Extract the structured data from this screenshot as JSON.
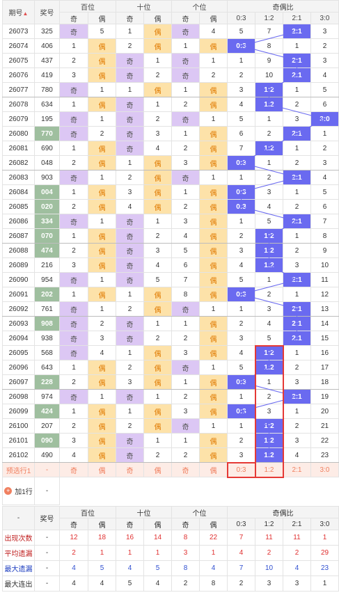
{
  "header": {
    "issue": "期号",
    "prize": "奖号",
    "groups": [
      "百位",
      "十位",
      "个位",
      "奇偶比"
    ],
    "odd": "奇",
    "even": "偶",
    "ratios": [
      "0:3",
      "1:2",
      "2:1",
      "3:0"
    ]
  },
  "rows": [
    {
      "issue": "26073",
      "prize": "325",
      "b": [
        "奇",
        "5"
      ],
      "s": [
        "1",
        "偶"
      ],
      "g": [
        "奇",
        "4"
      ],
      "r": [
        "5",
        "7",
        "2:1",
        "3"
      ],
      "sel": 2,
      "green": false
    },
    {
      "issue": "26074",
      "prize": "406",
      "b": [
        "1",
        "偶"
      ],
      "s": [
        "2",
        "偶"
      ],
      "g": [
        "1",
        "偶"
      ],
      "r": [
        "0:3",
        "8",
        "1",
        "2"
      ],
      "sel": 0,
      "green": false
    },
    {
      "issue": "26075",
      "prize": "437",
      "b": [
        "2",
        "偶"
      ],
      "s": [
        "奇",
        "1"
      ],
      "g": [
        "奇",
        "1"
      ],
      "r": [
        "1",
        "9",
        "2:1",
        "3"
      ],
      "sel": 2,
      "green": false
    },
    {
      "issue": "26076",
      "prize": "419",
      "b": [
        "3",
        "偶"
      ],
      "s": [
        "奇",
        "2"
      ],
      "g": [
        "奇",
        "2"
      ],
      "r": [
        "2",
        "10",
        "2:1",
        "4"
      ],
      "sel": 2,
      "green": false
    },
    {
      "issue": "26077",
      "prize": "780",
      "b": [
        "奇",
        "1"
      ],
      "s": [
        "1",
        "偶"
      ],
      "g": [
        "1",
        "偶"
      ],
      "r": [
        "3",
        "1:2",
        "1",
        "5"
      ],
      "sel": 1,
      "green": false
    },
    {
      "issue": "26078",
      "prize": "634",
      "b": [
        "1",
        "偶"
      ],
      "s": [
        "奇",
        "1"
      ],
      "g": [
        "2",
        "偶"
      ],
      "r": [
        "4",
        "1:2",
        "2",
        "6"
      ],
      "sel": 1,
      "green": false
    },
    {
      "issue": "26079",
      "prize": "195",
      "b": [
        "奇",
        "1"
      ],
      "s": [
        "奇",
        "2"
      ],
      "g": [
        "奇",
        "1"
      ],
      "r": [
        "5",
        "1",
        "3",
        "3:0"
      ],
      "sel": 3,
      "green": false
    },
    {
      "issue": "26080",
      "prize": "770",
      "b": [
        "奇",
        "2"
      ],
      "s": [
        "奇",
        "3"
      ],
      "g": [
        "1",
        "偶"
      ],
      "r": [
        "6",
        "2",
        "2:1",
        "1"
      ],
      "sel": 2,
      "green": true
    },
    {
      "issue": "26081",
      "prize": "690",
      "b": [
        "1",
        "偶"
      ],
      "s": [
        "奇",
        "4"
      ],
      "g": [
        "2",
        "偶"
      ],
      "r": [
        "7",
        "1:2",
        "1",
        "2"
      ],
      "sel": 1,
      "green": false
    },
    {
      "issue": "26082",
      "prize": "048",
      "b": [
        "2",
        "偶"
      ],
      "s": [
        "1",
        "偶"
      ],
      "g": [
        "3",
        "偶"
      ],
      "r": [
        "0:3",
        "1",
        "2",
        "3"
      ],
      "sel": 0,
      "green": false
    },
    {
      "issue": "26083",
      "prize": "903",
      "b": [
        "奇",
        "1"
      ],
      "s": [
        "2",
        "偶"
      ],
      "g": [
        "奇",
        "1"
      ],
      "r": [
        "1",
        "2",
        "2:1",
        "4"
      ],
      "sel": 2,
      "green": false
    },
    {
      "issue": "26084",
      "prize": "004",
      "b": [
        "1",
        "偶"
      ],
      "s": [
        "3",
        "偶"
      ],
      "g": [
        "1",
        "偶"
      ],
      "r": [
        "0:3",
        "3",
        "1",
        "5"
      ],
      "sel": 0,
      "green": true
    },
    {
      "issue": "26085",
      "prize": "020",
      "b": [
        "2",
        "偶"
      ],
      "s": [
        "4",
        "偶"
      ],
      "g": [
        "2",
        "偶"
      ],
      "r": [
        "0:3",
        "4",
        "2",
        "6"
      ],
      "sel": 0,
      "green": true
    },
    {
      "issue": "26086",
      "prize": "334",
      "b": [
        "奇",
        "1"
      ],
      "s": [
        "奇",
        "1"
      ],
      "g": [
        "3",
        "偶"
      ],
      "r": [
        "1",
        "5",
        "2:1",
        "7"
      ],
      "sel": 2,
      "green": true
    },
    {
      "issue": "26087",
      "prize": "070",
      "b": [
        "1",
        "偶"
      ],
      "s": [
        "奇",
        "2"
      ],
      "g": [
        "4",
        "偶"
      ],
      "r": [
        "2",
        "1:2",
        "1",
        "8"
      ],
      "sel": 1,
      "green": true
    },
    {
      "issue": "26088",
      "prize": "474",
      "b": [
        "2",
        "偶"
      ],
      "s": [
        "奇",
        "3"
      ],
      "g": [
        "5",
        "偶"
      ],
      "r": [
        "3",
        "1:2",
        "2",
        "9"
      ],
      "sel": 1,
      "green": true
    },
    {
      "issue": "26089",
      "prize": "216",
      "b": [
        "3",
        "偶"
      ],
      "s": [
        "奇",
        "4"
      ],
      "g": [
        "6",
        "偶"
      ],
      "r": [
        "4",
        "1:2",
        "3",
        "10"
      ],
      "sel": 1,
      "green": false
    },
    {
      "issue": "26090",
      "prize": "954",
      "b": [
        "奇",
        "1"
      ],
      "s": [
        "奇",
        "5"
      ],
      "g": [
        "7",
        "偶"
      ],
      "r": [
        "5",
        "1",
        "2:1",
        "11"
      ],
      "sel": 2,
      "green": false
    },
    {
      "issue": "26091",
      "prize": "202",
      "b": [
        "1",
        "偶"
      ],
      "s": [
        "1",
        "偶"
      ],
      "g": [
        "8",
        "偶"
      ],
      "r": [
        "0:3",
        "2",
        "1",
        "12"
      ],
      "sel": 0,
      "green": true
    },
    {
      "issue": "26092",
      "prize": "761",
      "b": [
        "奇",
        "1"
      ],
      "s": [
        "2",
        "偶"
      ],
      "g": [
        "奇",
        "1"
      ],
      "r": [
        "1",
        "3",
        "2:1",
        "13"
      ],
      "sel": 2,
      "green": false
    },
    {
      "issue": "26093",
      "prize": "908",
      "b": [
        "奇",
        "2"
      ],
      "s": [
        "奇",
        "1"
      ],
      "g": [
        "1",
        "偶"
      ],
      "r": [
        "2",
        "4",
        "2:1",
        "14"
      ],
      "sel": 2,
      "green": true
    },
    {
      "issue": "26094",
      "prize": "938",
      "b": [
        "奇",
        "3"
      ],
      "s": [
        "奇",
        "2"
      ],
      "g": [
        "2",
        "偶"
      ],
      "r": [
        "3",
        "5",
        "2:1",
        "15"
      ],
      "sel": 2,
      "green": false
    },
    {
      "issue": "26095",
      "prize": "568",
      "b": [
        "奇",
        "4"
      ],
      "s": [
        "1",
        "偶"
      ],
      "g": [
        "3",
        "偶"
      ],
      "r": [
        "4",
        "1:2",
        "1",
        "16"
      ],
      "sel": 1,
      "green": false
    },
    {
      "issue": "26096",
      "prize": "643",
      "b": [
        "1",
        "偶"
      ],
      "s": [
        "2",
        "偶"
      ],
      "g": [
        "奇",
        "1"
      ],
      "r": [
        "5",
        "1:2",
        "2",
        "17"
      ],
      "sel": 1,
      "green": false
    },
    {
      "issue": "26097",
      "prize": "228",
      "b": [
        "2",
        "偶"
      ],
      "s": [
        "3",
        "偶"
      ],
      "g": [
        "1",
        "偶"
      ],
      "r": [
        "0:3",
        "1",
        "3",
        "18"
      ],
      "sel": 0,
      "green": true
    },
    {
      "issue": "26098",
      "prize": "974",
      "b": [
        "奇",
        "1"
      ],
      "s": [
        "奇",
        "1"
      ],
      "g": [
        "2",
        "偶"
      ],
      "r": [
        "1",
        "2",
        "2:1",
        "19"
      ],
      "sel": 2,
      "green": false
    },
    {
      "issue": "26099",
      "prize": "424",
      "b": [
        "1",
        "偶"
      ],
      "s": [
        "1",
        "偶"
      ],
      "g": [
        "3",
        "偶"
      ],
      "r": [
        "0:3",
        "3",
        "1",
        "20"
      ],
      "sel": 0,
      "green": true
    },
    {
      "issue": "26100",
      "prize": "207",
      "b": [
        "2",
        "偶"
      ],
      "s": [
        "2",
        "偶"
      ],
      "g": [
        "奇",
        "1"
      ],
      "r": [
        "1",
        "1:2",
        "2",
        "21"
      ],
      "sel": 1,
      "green": false
    },
    {
      "issue": "26101",
      "prize": "090",
      "b": [
        "3",
        "偶"
      ],
      "s": [
        "奇",
        "1"
      ],
      "g": [
        "1",
        "偶"
      ],
      "r": [
        "2",
        "1:2",
        "3",
        "22"
      ],
      "sel": 1,
      "green": true
    },
    {
      "issue": "26102",
      "prize": "490",
      "b": [
        "4",
        "偶"
      ],
      "s": [
        "奇",
        "2"
      ],
      "g": [
        "2",
        "偶"
      ],
      "r": [
        "3",
        "1:2",
        "4",
        "23"
      ],
      "sel": 1,
      "green": false
    }
  ],
  "preselect": {
    "label": "预选行1",
    "prize": "-",
    "cells": [
      "奇",
      "偶",
      "奇",
      "偶",
      "奇",
      "偶",
      "0:3",
      "1:2",
      "2:1",
      "3:0"
    ]
  },
  "add_row": {
    "label": "加1行",
    "icon": "plus-icon",
    "value": "-"
  },
  "stats": {
    "header_issue": "-",
    "header_prize": "奖号",
    "rows": [
      {
        "label": "出现次数",
        "prize": "-",
        "vals": [
          "12",
          "18",
          "16",
          "14",
          "8",
          "22",
          "7",
          "11",
          "11",
          "1"
        ],
        "style": "red"
      },
      {
        "label": "平均遗漏",
        "prize": "-",
        "vals": [
          "2",
          "1",
          "1",
          "1",
          "3",
          "1",
          "4",
          "2",
          "2",
          "29"
        ],
        "style": "red"
      },
      {
        "label": "最大遗漏",
        "prize": "-",
        "vals": [
          "4",
          "5",
          "4",
          "5",
          "8",
          "4",
          "7",
          "10",
          "4",
          "23"
        ],
        "style": "blue"
      },
      {
        "label": "最大连出",
        "prize": "-",
        "vals": [
          "4",
          "4",
          "5",
          "4",
          "2",
          "8",
          "2",
          "3",
          "3",
          "1"
        ],
        "style": "plain"
      }
    ]
  },
  "colors": {
    "odd": "#dcc7f4",
    "even": "#fde2a9",
    "selected": "#6a6af0",
    "green": "#9fbf9f",
    "highlight": "#e53935"
  }
}
